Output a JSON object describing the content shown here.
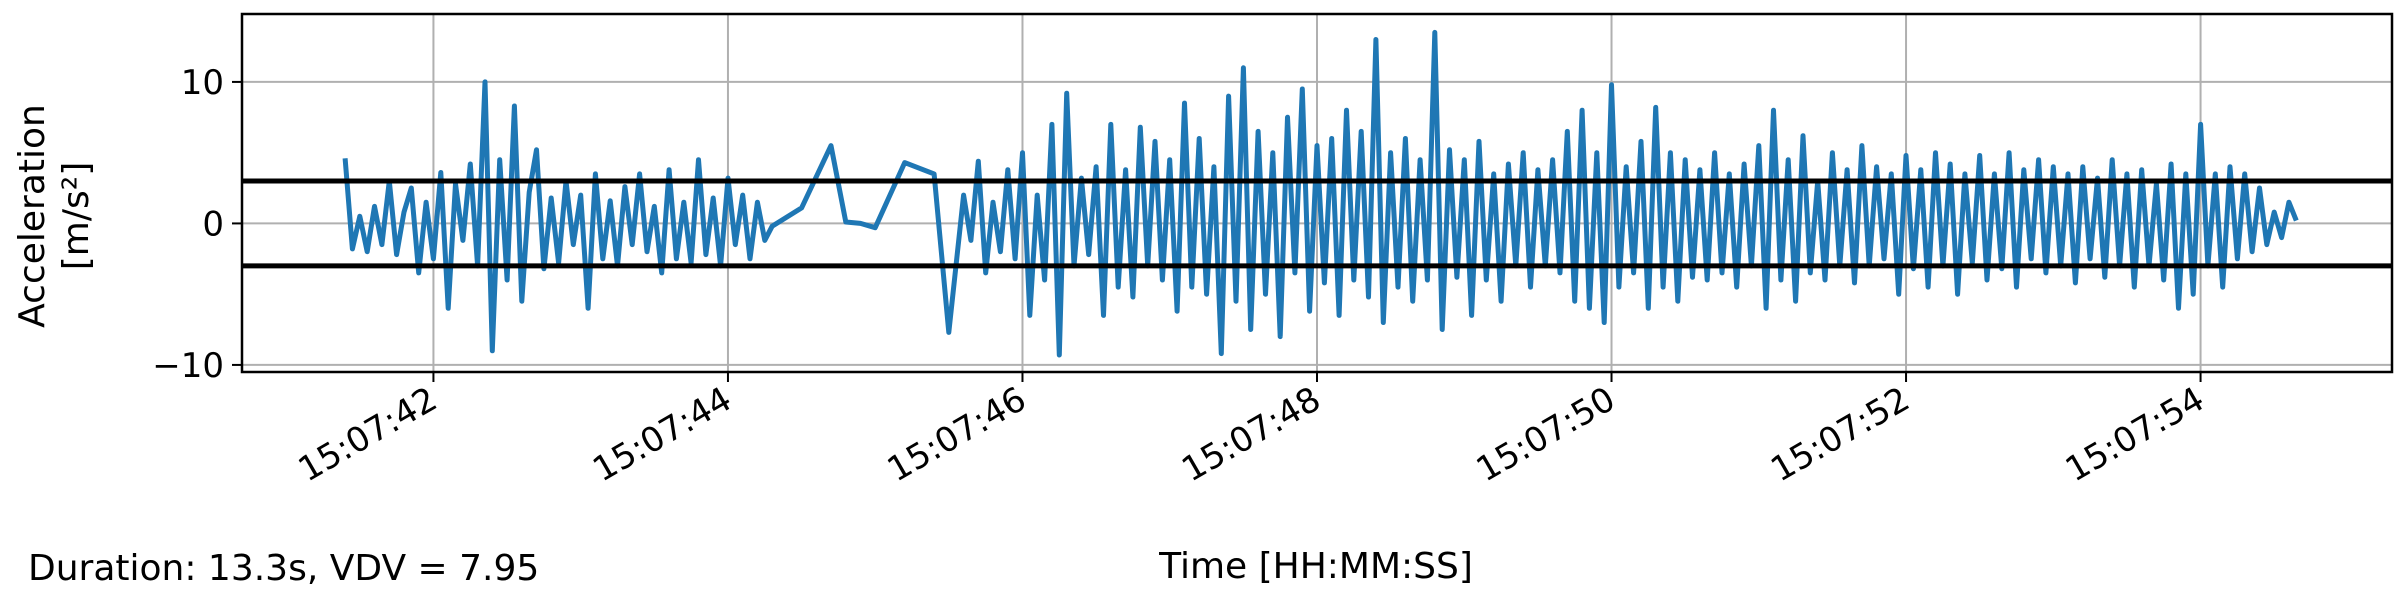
{
  "chart_data": {
    "type": "line",
    "title": "",
    "xlabel": "Time [HH:MM:SS]",
    "ylabel_lines": [
      "Acceleration",
      "[m/s²]"
    ],
    "xlim_seconds": [
      40.7,
      55.3
    ],
    "ylim": [
      -10.5,
      14.8
    ],
    "x_ticks": [
      {
        "t": 42,
        "label": "15:07:42"
      },
      {
        "t": 44,
        "label": "15:07:44"
      },
      {
        "t": 46,
        "label": "15:07:46"
      },
      {
        "t": 48,
        "label": "15:07:48"
      },
      {
        "t": 50,
        "label": "15:07:50"
      },
      {
        "t": 52,
        "label": "15:07:52"
      },
      {
        "t": 54,
        "label": "15:07:54"
      }
    ],
    "y_ticks": [
      {
        "v": 10,
        "label": "10"
      },
      {
        "v": 0,
        "label": "0"
      },
      {
        "v": -10,
        "label": "−10"
      }
    ],
    "grid": true,
    "threshold_lines": [
      3,
      -3
    ],
    "series": [
      {
        "color": "#1f77b4",
        "x": [
          41.4,
          41.45,
          41.5,
          41.55,
          41.6,
          41.65,
          41.7,
          41.75,
          41.8,
          41.85,
          41.9,
          41.95,
          42.0,
          42.05,
          42.1,
          42.15,
          42.2,
          42.25,
          42.3,
          42.35,
          42.4,
          42.45,
          42.5,
          42.55,
          42.6,
          42.65,
          42.7,
          42.75,
          42.8,
          42.85,
          42.9,
          42.95,
          43.0,
          43.05,
          43.1,
          43.15,
          43.2,
          43.25,
          43.3,
          43.35,
          43.4,
          43.45,
          43.5,
          43.55,
          43.6,
          43.65,
          43.7,
          43.75,
          43.8,
          43.85,
          43.9,
          43.95,
          44.0,
          44.05,
          44.1,
          44.15,
          44.2,
          44.25,
          44.3,
          44.5,
          44.7,
          44.8,
          44.9,
          45.0,
          45.2,
          45.4,
          45.5,
          45.6,
          45.65,
          45.7,
          45.75,
          45.8,
          45.85,
          45.9,
          45.95,
          46.0,
          46.05,
          46.1,
          46.15,
          46.2,
          46.25,
          46.3,
          46.35,
          46.4,
          46.45,
          46.5,
          46.55,
          46.6,
          46.65,
          46.7,
          46.75,
          46.8,
          46.85,
          46.9,
          46.95,
          47.0,
          47.05,
          47.1,
          47.15,
          47.2,
          47.25,
          47.3,
          47.35,
          47.4,
          47.45,
          47.5,
          47.55,
          47.6,
          47.65,
          47.7,
          47.75,
          47.8,
          47.85,
          47.9,
          47.95,
          48.0,
          48.05,
          48.1,
          48.15,
          48.2,
          48.25,
          48.3,
          48.35,
          48.4,
          48.45,
          48.5,
          48.55,
          48.6,
          48.65,
          48.7,
          48.75,
          48.8,
          48.85,
          48.9,
          48.95,
          49.0,
          49.05,
          49.1,
          49.15,
          49.2,
          49.25,
          49.3,
          49.35,
          49.4,
          49.45,
          49.5,
          49.55,
          49.6,
          49.65,
          49.7,
          49.75,
          49.8,
          49.85,
          49.9,
          49.95,
          50.0,
          50.05,
          50.1,
          50.15,
          50.2,
          50.25,
          50.3,
          50.35,
          50.4,
          50.45,
          50.5,
          50.55,
          50.6,
          50.65,
          50.7,
          50.75,
          50.8,
          50.85,
          50.9,
          50.95,
          51.0,
          51.05,
          51.1,
          51.15,
          51.2,
          51.25,
          51.3,
          51.35,
          51.4,
          51.45,
          51.5,
          51.55,
          51.6,
          51.65,
          51.7,
          51.75,
          51.8,
          51.85,
          51.9,
          51.95,
          52.0,
          52.05,
          52.1,
          52.15,
          52.2,
          52.25,
          52.3,
          52.35,
          52.4,
          52.45,
          52.5,
          52.55,
          52.6,
          52.65,
          52.7,
          52.75,
          52.8,
          52.85,
          52.9,
          52.95,
          53.0,
          53.05,
          53.1,
          53.15,
          53.2,
          53.25,
          53.3,
          53.35,
          53.4,
          53.45,
          53.5,
          53.55,
          53.6,
          53.65,
          53.7,
          53.75,
          53.8,
          53.85,
          53.9,
          53.95,
          54.0,
          54.05,
          54.1,
          54.15,
          54.2,
          54.25,
          54.3,
          54.35,
          54.4,
          54.45,
          54.5,
          54.55,
          54.6,
          54.65
        ],
        "values": [
          4.6,
          -1.8,
          0.5,
          -2.0,
          1.2,
          -1.5,
          3.0,
          -2.2,
          0.8,
          2.5,
          -3.5,
          1.5,
          -2.5,
          3.6,
          -6.0,
          2.8,
          -1.2,
          4.2,
          -3.0,
          10.0,
          -9.0,
          4.5,
          -4.0,
          8.3,
          -5.5,
          2.2,
          5.2,
          -3.2,
          1.8,
          -2.8,
          3.0,
          -1.5,
          2.0,
          -6.0,
          3.5,
          -2.5,
          1.6,
          -3.0,
          2.6,
          -1.5,
          3.5,
          -2.0,
          1.2,
          -3.5,
          3.8,
          -2.5,
          1.5,
          -2.8,
          4.5,
          -2.2,
          1.8,
          -3.0,
          3.2,
          -1.5,
          2.0,
          -2.5,
          1.5,
          -1.2,
          -0.2,
          1.1,
          5.5,
          0.1,
          0.0,
          -0.3,
          4.3,
          3.5,
          -7.7,
          2.0,
          -1.2,
          4.4,
          -3.5,
          1.5,
          -2.0,
          3.8,
          -2.5,
          5.0,
          -6.5,
          2.0,
          -4.0,
          7.0,
          -9.3,
          9.2,
          -3.0,
          3.2,
          -2.2,
          4.0,
          -6.5,
          7.0,
          -4.5,
          3.8,
          -5.2,
          6.8,
          -3.0,
          5.8,
          -4.0,
          4.5,
          -6.2,
          8.5,
          -4.5,
          6.0,
          -5.0,
          4.0,
          -9.2,
          9.0,
          -5.5,
          11.0,
          -7.5,
          6.5,
          -5.0,
          5.0,
          -8.0,
          7.5,
          -3.5,
          9.5,
          -6.2,
          5.5,
          -4.2,
          6.0,
          -6.5,
          8.0,
          -4.0,
          6.5,
          -5.2,
          13.0,
          -7.0,
          5.0,
          -4.5,
          6.0,
          -5.5,
          4.5,
          -4.0,
          13.5,
          -7.5,
          5.2,
          -3.8,
          4.5,
          -6.5,
          5.8,
          -4.0,
          3.5,
          -5.5,
          4.2,
          -3.0,
          5.0,
          -4.5,
          3.8,
          -3.0,
          4.5,
          -3.5,
          6.5,
          -5.5,
          8.0,
          -6.0,
          5.0,
          -7.0,
          9.8,
          -4.5,
          4.0,
          -3.5,
          5.8,
          -6.0,
          8.2,
          -4.5,
          5.0,
          -5.5,
          4.5,
          -3.8,
          3.8,
          -4.0,
          5.0,
          -3.5,
          3.5,
          -4.5,
          4.2,
          -3.0,
          5.5,
          -6.0,
          8.0,
          -4.0,
          4.5,
          -5.5,
          6.2,
          -3.5,
          3.0,
          -4.0,
          5.0,
          -3.0,
          3.8,
          -4.2,
          5.5,
          -3.0,
          4.0,
          -2.5,
          3.5,
          -5.0,
          4.8,
          -3.2,
          3.8,
          -4.5,
          5.0,
          -3.0,
          4.2,
          -5.0,
          3.5,
          -2.8,
          4.8,
          -4.0,
          3.5,
          -3.2,
          5.0,
          -4.5,
          3.8,
          -2.5,
          4.5,
          -3.5,
          4.0,
          -3.0,
          3.5,
          -4.2,
          4.0,
          -2.5,
          3.2,
          -3.8,
          4.5,
          -3.0,
          3.5,
          -4.5,
          3.8,
          -3.0,
          2.8,
          -4.0,
          4.2,
          -6.0,
          3.5,
          -5.0,
          7.0,
          -3.0,
          3.5,
          -4.5,
          4.0,
          -2.5,
          3.5,
          -2.0,
          2.5,
          -1.5,
          0.8,
          -1.0,
          1.5,
          0.2
        ]
      }
    ]
  },
  "footer": {
    "summary": "Duration: 13.3s, VDV = 7.95"
  }
}
